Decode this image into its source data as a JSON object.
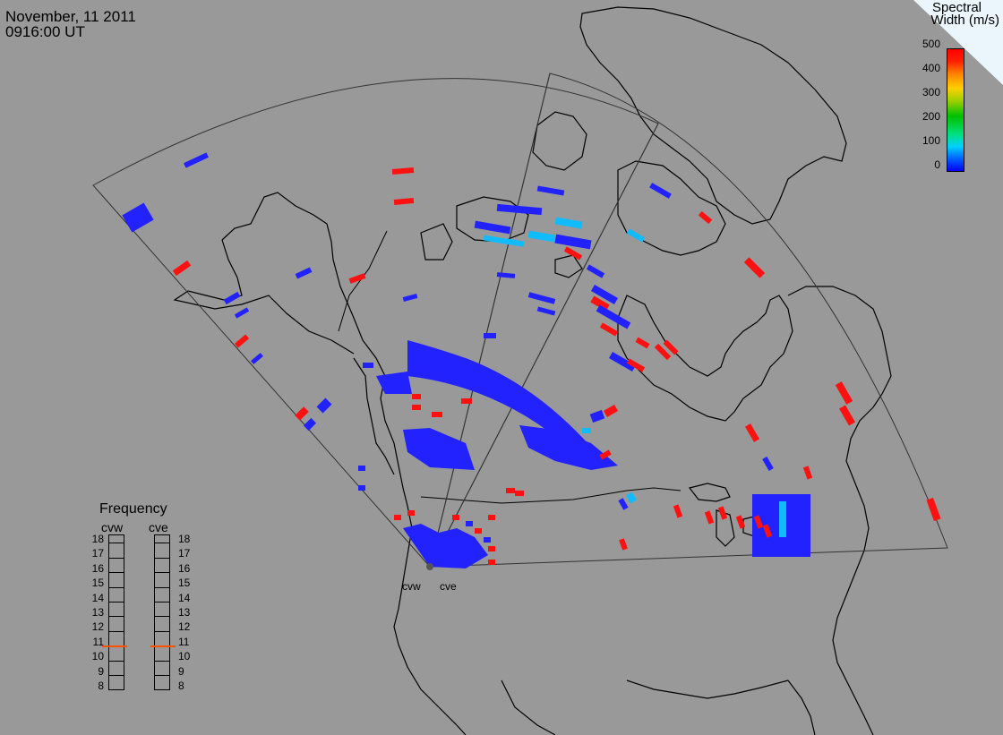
{
  "header": {
    "date": "November, 11 2011",
    "time": "0916:00 UT"
  },
  "legend": {
    "title_line1": "Spectral",
    "title_line2": "Width (m/s)",
    "ticks": [
      "500",
      "400",
      "300",
      "200",
      "100",
      "0"
    ],
    "colors": [
      "#0000ff",
      "#00d0ff",
      "#00c000",
      "#ffd000",
      "#ff0000"
    ]
  },
  "frequency": {
    "title": "Frequency",
    "radars": [
      "cvw",
      "cve"
    ],
    "scale": [
      "18",
      "17",
      "16",
      "15",
      "14",
      "13",
      "12",
      "11",
      "10",
      "9",
      "8"
    ],
    "cvw_value": 10.8,
    "cve_value": 10.8,
    "marker_color": "#ff5000"
  },
  "radar_sites": [
    "cvw",
    "cve"
  ],
  "colors": {
    "background": "#999999",
    "coastline": "#000000",
    "low_width": "#2222ff",
    "mid_width": "#11bbff",
    "high_width": "#ff1111"
  }
}
